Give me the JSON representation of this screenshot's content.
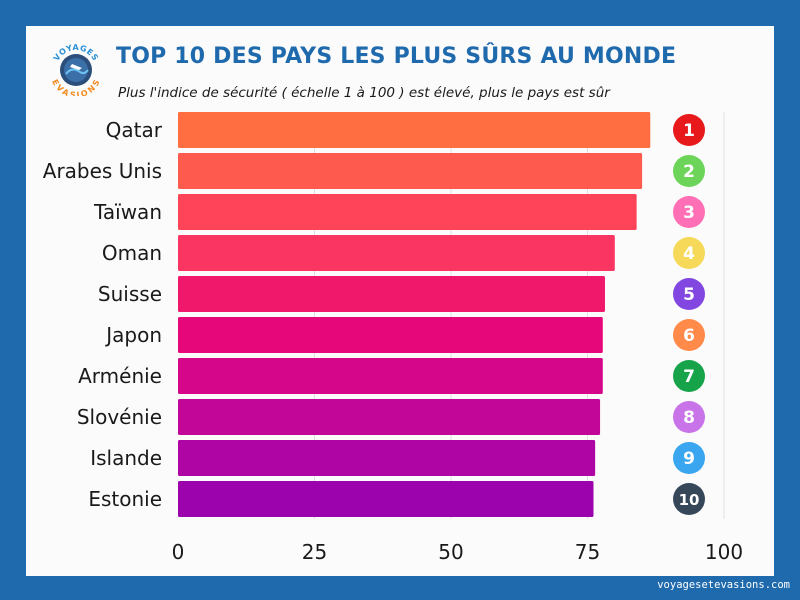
{
  "header": {
    "title": "TOP 10 DES PAYS LES PLUS SÛRS AU MONDE",
    "subtitle": "Plus l'indice de sécurité ( échelle 1 à 100 ) est élevé, plus le pays est sûr",
    "logo_text_top": "VOYAGES",
    "logo_text_bottom": "EVASIONS"
  },
  "footer": {
    "url": "voyagesetevasions.com"
  },
  "colors": {
    "background": "#1f6aad",
    "card": "#fbfbfb",
    "title": "#1f6aad"
  },
  "chart_data": {
    "type": "bar",
    "orientation": "horizontal",
    "categories": [
      "Qatar",
      "Arabes Unis",
      "Taïwan",
      "Oman",
      "Suisse",
      "Japon",
      "Arménie",
      "Slovénie",
      "Islande",
      "Estonie"
    ],
    "values": [
      86.5,
      85,
      84,
      80,
      78.2,
      77.8,
      77.8,
      77.3,
      76.4,
      76.1
    ],
    "bar_colors": [
      "#ff6e40",
      "#ff5a4e",
      "#ff4459",
      "#fb3562",
      "#f0186b",
      "#e6087a",
      "#d5068a",
      "#c20697",
      "#b005a5",
      "#9c03ac"
    ],
    "xticks": [
      "0",
      "25",
      "50",
      "75",
      "100"
    ],
    "xlim": [
      0,
      100
    ],
    "rank_badges": [
      {
        "label": "1",
        "color": "#e8191a"
      },
      {
        "label": "2",
        "color": "#6dd45a"
      },
      {
        "label": "3",
        "color": "#ff6fb5"
      },
      {
        "label": "4",
        "color": "#f7d95a"
      },
      {
        "label": "5",
        "color": "#8247e0"
      },
      {
        "label": "6",
        "color": "#ff8a4a"
      },
      {
        "label": "7",
        "color": "#16a34a"
      },
      {
        "label": "8",
        "color": "#c874e8"
      },
      {
        "label": "9",
        "color": "#3aa6f0"
      },
      {
        "label": "10",
        "color": "#37475a"
      }
    ],
    "grid": true,
    "title": "TOP 10 DES PAYS LES PLUS SÛRS AU MONDE",
    "subtitle": "Plus l'indice de sécurité ( échelle 1 à 100 ) est élevé, plus le pays est sûr"
  }
}
